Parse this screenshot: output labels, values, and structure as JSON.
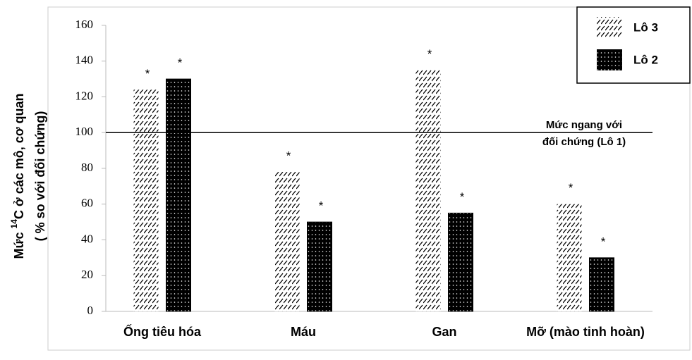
{
  "chart_data": {
    "type": "bar",
    "y_label": {
      "prefix": "Mức ",
      "superscript": "14",
      "rest": "C ở các mô, cơ quan",
      "line2": "( % so với đối chứng)"
    },
    "categories": [
      "Ống tiêu hóa",
      "Máu",
      "Gan",
      "Mỡ (mào tinh hoàn)"
    ],
    "series": [
      {
        "name": "Lô 3",
        "color": "#000000",
        "pattern": "hatch",
        "values": [
          124,
          78,
          135,
          60
        ],
        "markers": [
          "*",
          "*",
          "*",
          "*"
        ]
      },
      {
        "name": "Lô 2",
        "color": "#000000",
        "pattern": "dots",
        "values": [
          130,
          50,
          55,
          30
        ],
        "markers": [
          "*",
          "*",
          "*",
          "*"
        ]
      }
    ],
    "reference_line": {
      "value": 100,
      "label": [
        "Mức ngang với",
        "đối chứng (Lô 1)"
      ]
    },
    "ylim": [
      0,
      160
    ],
    "yticks": [
      0,
      20,
      40,
      60,
      80,
      100,
      120,
      140,
      160
    ],
    "grid": false,
    "legend": "top-right"
  }
}
